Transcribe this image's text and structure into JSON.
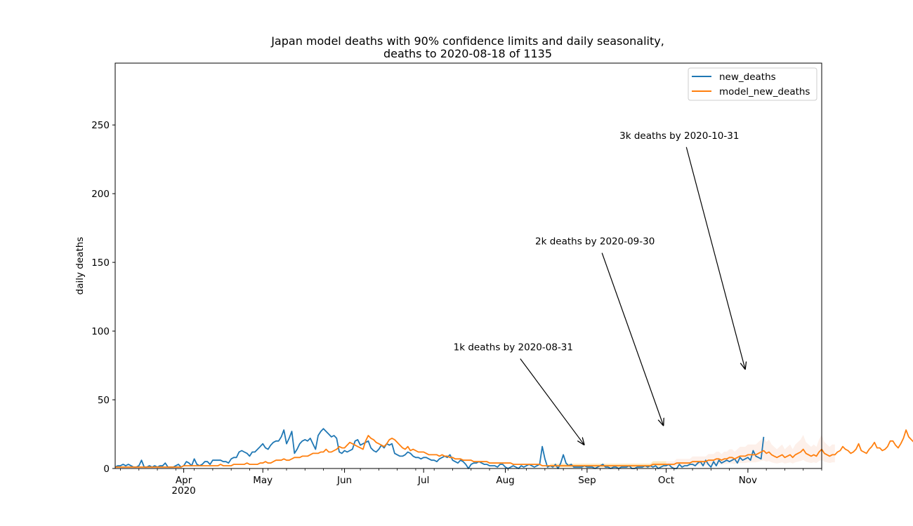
{
  "chart_data": {
    "type": "line",
    "title_line1": "Japan model deaths with 90% confidence limits and daily seasonality,",
    "title_line2": "deaths to 2020-08-18 of 1135",
    "xlabel": "",
    "ylabel": "daily deaths",
    "ylim": [
      0,
      295
    ],
    "xlim": [
      "2020-03-06",
      "2020-11-29"
    ],
    "y_ticks": [
      0,
      50,
      100,
      150,
      200,
      250
    ],
    "x_ticks": [
      {
        "date": "2020-04-01",
        "label": "Apr",
        "sublabel": "2020"
      },
      {
        "date": "2020-05-01",
        "label": "May",
        "sublabel": ""
      },
      {
        "date": "2020-06-01",
        "label": "Jun",
        "sublabel": ""
      },
      {
        "date": "2020-07-01",
        "label": "Jul",
        "sublabel": ""
      },
      {
        "date": "2020-08-01",
        "label": "Aug",
        "sublabel": ""
      },
      {
        "date": "2020-09-01",
        "label": "Sep",
        "sublabel": ""
      },
      {
        "date": "2020-10-01",
        "label": "Oct",
        "sublabel": ""
      },
      {
        "date": "2020-11-01",
        "label": "Nov",
        "sublabel": ""
      }
    ],
    "legend": {
      "position": "top-right"
    },
    "grid": false,
    "colors": {
      "new_deaths": "#1f77b4",
      "model_new_deaths": "#ff7f0e",
      "ci_band_near": "#fde6b8",
      "ci_band_far": "#fdeee8"
    },
    "series": [
      {
        "name": "new_deaths",
        "start_date": "2020-03-06",
        "values": [
          1,
          2,
          2,
          3,
          2,
          3,
          2,
          1,
          1,
          2,
          6,
          1,
          1,
          2,
          1,
          2,
          1,
          2,
          2,
          4,
          1,
          1,
          1,
          2,
          3,
          1,
          2,
          5,
          4,
          2,
          7,
          3,
          2,
          3,
          5,
          5,
          3,
          6,
          6,
          6,
          6,
          5,
          5,
          4,
          7,
          8,
          8,
          12,
          13,
          12,
          11,
          9,
          12,
          12,
          14,
          16,
          18,
          15,
          14,
          17,
          19,
          20,
          20,
          23,
          28,
          18,
          22,
          27,
          11,
          14,
          18,
          20,
          21,
          20,
          22,
          18,
          14,
          24,
          27,
          29,
          27,
          25,
          23,
          24,
          22,
          12,
          11,
          13,
          12,
          13,
          14,
          20,
          21,
          17,
          18,
          19,
          20,
          15,
          13,
          12,
          14,
          17,
          15,
          18,
          17,
          18,
          11,
          10,
          9,
          9,
          10,
          12,
          11,
          9,
          8,
          8,
          7,
          8,
          8,
          7,
          6,
          6,
          5,
          7,
          8,
          9,
          8,
          10,
          6,
          5,
          4,
          6,
          5,
          3,
          0,
          3,
          4,
          4,
          5,
          4,
          3,
          3,
          2,
          2,
          2,
          1,
          3,
          3,
          1,
          0,
          1,
          2,
          1,
          0,
          2,
          1,
          2,
          3,
          2,
          1,
          2,
          3,
          16,
          7,
          1,
          2,
          1,
          3,
          0,
          4,
          10,
          4,
          2,
          3,
          1,
          1,
          1,
          1,
          2,
          1,
          1,
          1,
          0,
          1,
          2,
          3,
          1,
          1,
          0,
          1,
          1,
          0,
          1,
          1,
          1,
          2,
          0,
          0,
          1,
          1,
          1,
          2,
          1,
          2,
          1,
          2,
          0,
          1,
          2,
          2,
          3,
          1,
          0,
          0,
          3,
          1,
          2,
          2,
          3,
          3,
          2,
          4,
          5,
          2,
          6,
          3,
          1,
          5,
          2,
          6,
          4,
          5,
          6,
          5,
          6,
          7,
          4,
          8,
          6,
          7,
          8,
          6,
          13,
          9,
          8,
          7,
          23
        ]
      },
      {
        "name": "model_new_deaths",
        "start_date": "2020-03-06",
        "values": [
          1,
          1,
          1,
          1,
          1,
          1,
          1,
          1,
          1,
          1,
          1,
          1,
          1,
          1,
          1,
          1,
          1,
          1,
          1,
          1,
          1,
          1,
          1,
          1,
          1,
          1,
          2,
          2,
          2,
          2,
          2,
          2,
          2,
          2,
          2,
          2,
          2,
          2,
          2,
          2,
          3,
          2,
          2,
          2,
          2,
          3,
          3,
          3,
          3,
          3,
          4,
          3,
          3,
          3,
          3,
          4,
          4,
          5,
          4,
          4,
          5,
          6,
          6,
          6,
          7,
          6,
          6,
          7,
          8,
          8,
          8,
          9,
          9,
          9,
          10,
          11,
          11,
          11,
          12,
          12,
          14,
          12,
          12,
          13,
          14,
          16,
          15,
          15,
          17,
          19,
          18,
          17,
          16,
          15,
          14,
          20,
          24,
          22,
          21,
          19,
          18,
          17,
          16,
          18,
          21,
          22,
          21,
          19,
          17,
          15,
          14,
          16,
          13,
          14,
          13,
          12,
          12,
          12,
          11,
          10,
          10,
          10,
          10,
          9,
          10,
          9,
          9,
          8,
          8,
          7,
          7,
          7,
          6,
          6,
          6,
          6,
          5,
          5,
          5,
          5,
          5,
          5,
          4,
          4,
          4,
          4,
          4,
          4,
          4,
          4,
          4,
          3,
          3,
          3,
          3,
          3,
          3,
          3,
          3,
          3,
          3,
          3,
          2,
          2,
          2,
          2,
          2,
          2,
          2,
          2,
          2,
          2,
          2,
          2,
          2,
          2,
          2,
          2,
          2,
          2,
          2,
          2,
          2,
          2,
          2,
          2,
          2,
          2,
          2,
          2,
          2,
          2,
          2,
          2,
          2,
          2,
          2,
          2,
          2,
          2,
          2,
          2,
          2,
          2,
          3,
          3,
          3,
          3,
          3,
          3,
          3,
          3,
          3,
          4,
          4,
          4,
          4,
          4,
          4,
          5,
          5,
          5,
          5,
          5,
          5,
          6,
          6,
          6,
          7,
          7,
          6,
          7,
          7,
          8,
          8,
          7,
          8,
          9,
          9,
          9,
          10,
          10,
          10,
          10,
          11,
          12,
          13,
          11,
          12,
          10,
          9,
          8,
          9,
          10,
          8,
          9,
          10,
          8,
          10,
          11,
          12,
          14,
          11,
          10,
          9,
          10,
          9,
          12,
          14,
          11,
          10,
          9,
          10,
          10,
          12,
          13,
          16,
          14,
          13,
          11,
          12,
          14,
          18,
          13,
          12,
          11,
          14,
          16,
          19,
          15,
          15,
          13,
          14,
          16,
          20,
          20,
          17,
          15,
          18,
          22,
          28,
          23,
          21,
          19,
          21,
          24,
          26,
          19,
          18,
          22,
          26,
          34,
          28,
          26,
          27,
          25,
          28,
          30,
          22,
          24,
          28,
          32,
          42,
          35,
          33,
          33,
          29,
          34,
          38,
          28,
          31,
          36,
          42,
          54,
          46,
          42,
          40,
          37,
          44,
          53,
          40,
          43,
          48,
          56,
          75,
          60,
          52,
          48,
          42,
          55,
          65,
          50,
          55,
          62,
          71,
          87,
          75,
          65,
          58,
          55,
          70,
          84,
          75,
          72,
          80,
          90,
          105,
          100,
          90,
          80,
          70,
          85,
          110,
          95,
          100,
          120,
          135,
          160,
          140,
          118,
          118
        ]
      }
    ],
    "confidence_band": {
      "label": "90% confidence limits",
      "start_date": "2020-08-18",
      "lower_mult": 0.45,
      "upper_mult": 1.75
    },
    "annotations": [
      {
        "text": "1k deaths by 2020-08-31",
        "text_x": "2020-08-04",
        "text_y": 86,
        "arrow_x": "2020-08-31",
        "arrow_y": 17
      },
      {
        "text": "2k deaths by 2020-09-30",
        "text_x": "2020-09-04",
        "text_y": 163,
        "arrow_x": "2020-09-30",
        "arrow_y": 31
      },
      {
        "text": "3k deaths by 2020-10-31",
        "text_x": "2020-10-06",
        "text_y": 240,
        "arrow_x": "2020-10-31",
        "arrow_y": 72
      }
    ]
  }
}
